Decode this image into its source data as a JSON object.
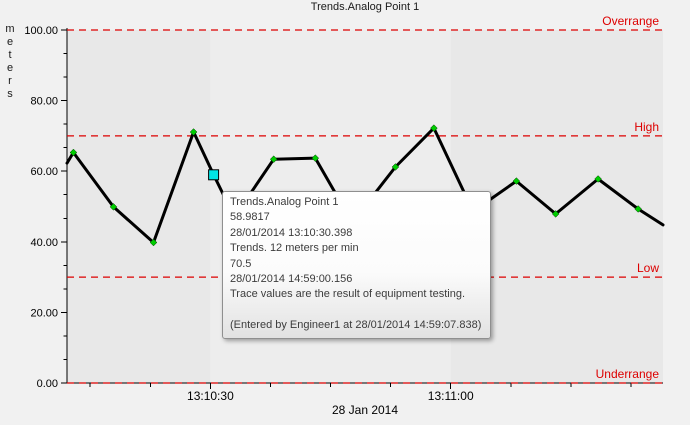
{
  "chart_data": {
    "type": "line",
    "title": "Trends.Analog Point 1",
    "date_label": "28 Jan 2014",
    "y_axis": {
      "label": "meters",
      "range": [
        0,
        100
      ],
      "major_ticks": [
        0,
        20,
        40,
        60,
        80,
        100
      ],
      "minor_divisions": 3,
      "tick_decimals": 2
    },
    "x_axis": {
      "t_unit": "seconds after 13:10:00",
      "range_s": [
        12.1,
        86.5
      ],
      "major_ticks": [
        {
          "t": 30,
          "label": "13:10:30"
        },
        {
          "t": 60,
          "label": "13:11:00"
        }
      ],
      "minor_ticks_s": [
        15,
        22.5,
        37.5,
        45,
        52.5,
        67.5,
        75,
        82.5
      ]
    },
    "thresholds": [
      {
        "name": "Overrange",
        "value": 100
      },
      {
        "name": "High",
        "value": 70
      },
      {
        "name": "Low",
        "value": 30
      },
      {
        "name": "Underrange",
        "value": 0
      }
    ],
    "bands": [
      {
        "from_s": 12.1,
        "to_s": 30,
        "shade": "dark"
      },
      {
        "from_s": 30,
        "to_s": 60,
        "shade": "light"
      },
      {
        "from_s": 60,
        "to_s": 86.5,
        "shade": "dark"
      }
    ],
    "series": [
      {
        "name": "Trends.Analog Point 1",
        "units": "meters",
        "points": [
          {
            "t": 12.1,
            "v": 62.3,
            "marker": false
          },
          {
            "t": 12.9,
            "v": 65.3,
            "marker": true
          },
          {
            "t": 17.9,
            "v": 49.9,
            "marker": true
          },
          {
            "t": 22.9,
            "v": 39.8,
            "marker": true
          },
          {
            "t": 27.9,
            "v": 71.1,
            "marker": true
          },
          {
            "t": 30.4,
            "v": 58.9817,
            "marker": true,
            "selected": true
          },
          {
            "t": 33.0,
            "v": 47.0,
            "marker": true
          },
          {
            "t": 37.9,
            "v": 63.4,
            "marker": true
          },
          {
            "t": 43.1,
            "v": 63.7,
            "marker": true
          },
          {
            "t": 47.7,
            "v": 45.5,
            "marker": true
          },
          {
            "t": 53.1,
            "v": 61.2,
            "marker": true
          },
          {
            "t": 57.9,
            "v": 72.2,
            "marker": true
          },
          {
            "t": 62.8,
            "v": 48.6,
            "marker": true
          },
          {
            "t": 68.2,
            "v": 57.2,
            "marker": true
          },
          {
            "t": 73.1,
            "v": 47.9,
            "marker": true
          },
          {
            "t": 78.4,
            "v": 57.8,
            "marker": true
          },
          {
            "t": 83.4,
            "v": 49.3,
            "marker": true
          },
          {
            "t": 86.5,
            "v": 44.8,
            "marker": false
          }
        ]
      }
    ]
  },
  "tooltip": {
    "lines": [
      "Trends.Analog Point 1",
      "58.9817",
      "28/01/2014 13:10:30.398",
      "Trends. 12 meters per min",
      "70.5",
      "28/01/2014 14:59:00.156",
      "Trace values are the result of equipment testing.",
      "",
      "(Entered by Engineer1 at 28/01/2014 14:59:07.838)"
    ]
  },
  "colors": {
    "page_bg": "#f1f1f1",
    "band_dark": "#e8e8e8",
    "band_light": "#ededed",
    "axis": "#000000",
    "threshold": "#dd0000",
    "trace": "#000000",
    "marker_fill": "#00cc00",
    "selected_fill": "#00e5e5",
    "tooltip_border": "#8f8f8f"
  }
}
